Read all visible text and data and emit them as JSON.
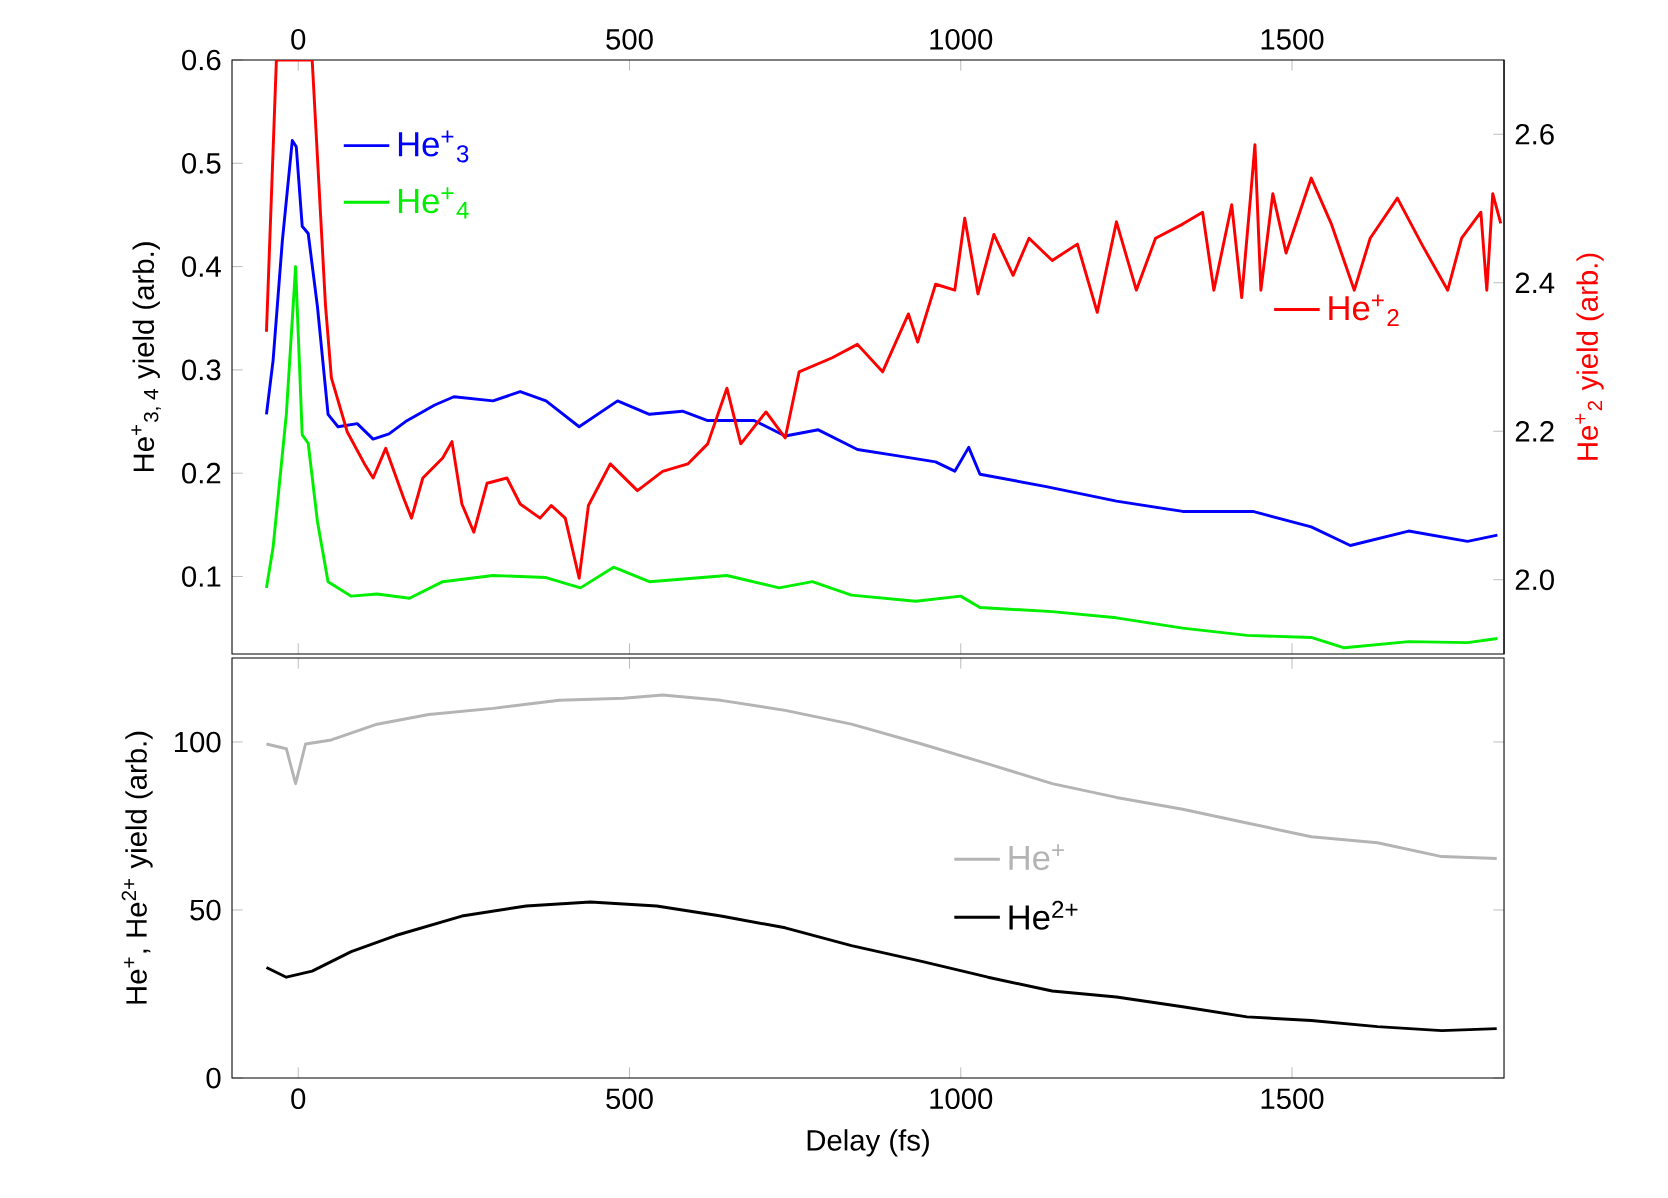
{
  "chart_data": [
    {
      "type": "line",
      "ylabel": "He$^{+}$$_{3, 4}$ yield (arb.)",
      "y2label": "He$^{+}$$_{2}$ yield (arb.)",
      "xlim": [
        -100,
        1820
      ],
      "xticks": [
        0,
        500,
        1000,
        1500
      ],
      "ylim": [
        0.025,
        0.6
      ],
      "yticks": [
        0.1,
        0.2,
        0.3,
        0.4,
        0.5,
        0.6
      ],
      "y2lim": [
        1.9,
        2.7
      ],
      "y2ticks": [
        {
          "value": 2.0,
          "label": "2.0"
        },
        2.2,
        2.4,
        2.6
      ],
      "legend": "top left",
      "series": [
        {
          "name": "He$^{+}$$_{3}$",
          "color": "#0000ff",
          "x": [
            -48,
            -38,
            -24,
            -9,
            -3,
            6,
            15,
            29,
            45,
            60,
            89,
            113,
            137,
            162,
            206,
            235,
            294,
            335,
            374,
            424,
            482,
            530,
            580,
            618,
            688,
            735,
            785,
            844,
            903,
            962,
            991,
            1012,
            1029,
            1129,
            1235,
            1335,
            1441,
            1529,
            1588,
            1676,
            1765,
            1810
          ],
          "values": [
            0.257,
            0.309,
            0.425,
            0.522,
            0.516,
            0.439,
            0.432,
            0.361,
            0.257,
            0.245,
            0.248,
            0.233,
            0.238,
            0.25,
            0.266,
            0.274,
            0.27,
            0.279,
            0.27,
            0.245,
            0.27,
            0.257,
            0.26,
            0.251,
            0.251,
            0.236,
            0.242,
            0.223,
            0.217,
            0.211,
            0.202,
            0.225,
            0.199,
            0.187,
            0.173,
            0.163,
            0.163,
            0.148,
            0.13,
            0.144,
            0.134,
            0.14
          ]
        },
        {
          "name": "He$^{+}$$_{4}$",
          "color": "#00ee00",
          "x": [
            -48,
            -38,
            -18,
            -4,
            6,
            15,
            29,
            45,
            80,
            119,
            168,
            218,
            294,
            374,
            426,
            476,
            530,
            647,
            726,
            776,
            835,
            932,
            1000,
            1029,
            1138,
            1235,
            1335,
            1432,
            1529,
            1579,
            1676,
            1765,
            1810
          ],
          "values": [
            0.089,
            0.128,
            0.257,
            0.4,
            0.237,
            0.229,
            0.153,
            0.095,
            0.081,
            0.083,
            0.079,
            0.095,
            0.101,
            0.099,
            0.089,
            0.109,
            0.095,
            0.101,
            0.089,
            0.095,
            0.082,
            0.076,
            0.081,
            0.07,
            0.066,
            0.06,
            0.05,
            0.043,
            0.041,
            0.031,
            0.037,
            0.036,
            0.04
          ]
        },
        {
          "name": "He$^{+}$$_{2}$",
          "color": "#ff0000",
          "axis": "y2",
          "x": [
            -48,
            -33,
            21,
            41,
            50,
            74,
            100,
            113,
            132,
            159,
            171,
            188,
            218,
            232,
            247,
            265,
            285,
            315,
            335,
            365,
            382,
            403,
            424,
            438,
            471,
            512,
            550,
            588,
            618,
            647,
            668,
            706,
            735,
            756,
            806,
            844,
            882,
            921,
            935,
            962,
            991,
            1006,
            1026,
            1050,
            1079,
            1103,
            1138,
            1176,
            1206,
            1235,
            1265,
            1294,
            1335,
            1365,
            1382,
            1409,
            1424,
            1438,
            1444,
            1453,
            1471,
            1491,
            1529,
            1559,
            1594,
            1618,
            1659,
            1697,
            1735,
            1756,
            1785,
            1794,
            1803,
            1815
          ],
          "values": [
            2.334,
            2.7,
            2.7,
            2.371,
            2.272,
            2.199,
            2.156,
            2.137,
            2.177,
            2.11,
            2.083,
            2.137,
            2.164,
            2.186,
            2.102,
            2.064,
            2.13,
            2.137,
            2.102,
            2.083,
            2.1,
            2.083,
            2.002,
            2.1,
            2.156,
            2.12,
            2.146,
            2.156,
            2.183,
            2.258,
            2.183,
            2.226,
            2.191,
            2.28,
            2.299,
            2.317,
            2.28,
            2.358,
            2.32,
            2.398,
            2.39,
            2.487,
            2.385,
            2.465,
            2.41,
            2.46,
            2.43,
            2.452,
            2.36,
            2.482,
            2.39,
            2.46,
            2.479,
            2.495,
            2.39,
            2.505,
            2.38,
            2.522,
            2.586,
            2.39,
            2.52,
            2.44,
            2.541,
            2.48,
            2.39,
            2.46,
            2.514,
            2.45,
            2.39,
            2.46,
            2.495,
            2.39,
            2.52,
            2.48
          ]
        }
      ]
    },
    {
      "type": "line",
      "xlabel": "Delay (fs)",
      "ylabel": "He$^{+}$, He$^{2+}$ yield (arb.)",
      "xlim": [
        -100,
        1820
      ],
      "xticks": [
        0,
        500,
        1000,
        1500
      ],
      "ylim": [
        0,
        125
      ],
      "yticks": [
        0,
        50,
        100
      ],
      "legend": "right",
      "series": [
        {
          "name": "He$^{+}$",
          "color": "#b4b4b4",
          "x": [
            -48,
            -18,
            -4,
            11,
            50,
            119,
            197,
            294,
            394,
            491,
            550,
            638,
            735,
            835,
            941,
            1041,
            1138,
            1235,
            1335,
            1432,
            1529,
            1629,
            1726,
            1809
          ],
          "values": [
            99.4,
            98,
            87.6,
            99.4,
            100.6,
            105.3,
            108.2,
            110,
            112.4,
            113,
            114,
            112.4,
            109.4,
            105.3,
            99.4,
            93.5,
            87.6,
            83.5,
            80,
            75.9,
            71.8,
            70,
            65.9,
            65.3
          ]
        },
        {
          "name": "He$^{2+}$",
          "color": "#000000",
          "x": [
            -48,
            -18,
            21,
            80,
            147,
            247,
            344,
            441,
            541,
            638,
            735,
            835,
            941,
            1041,
            1138,
            1235,
            1335,
            1432,
            1529,
            1629,
            1726,
            1809
          ],
          "values": [
            32.9,
            30,
            31.8,
            37.6,
            42.4,
            48.2,
            51.2,
            52.4,
            51.2,
            48.2,
            44.7,
            39.4,
            34.7,
            30,
            25.9,
            24.1,
            21.2,
            18.2,
            17.1,
            15.3,
            14.1,
            14.7
          ]
        }
      ]
    }
  ]
}
